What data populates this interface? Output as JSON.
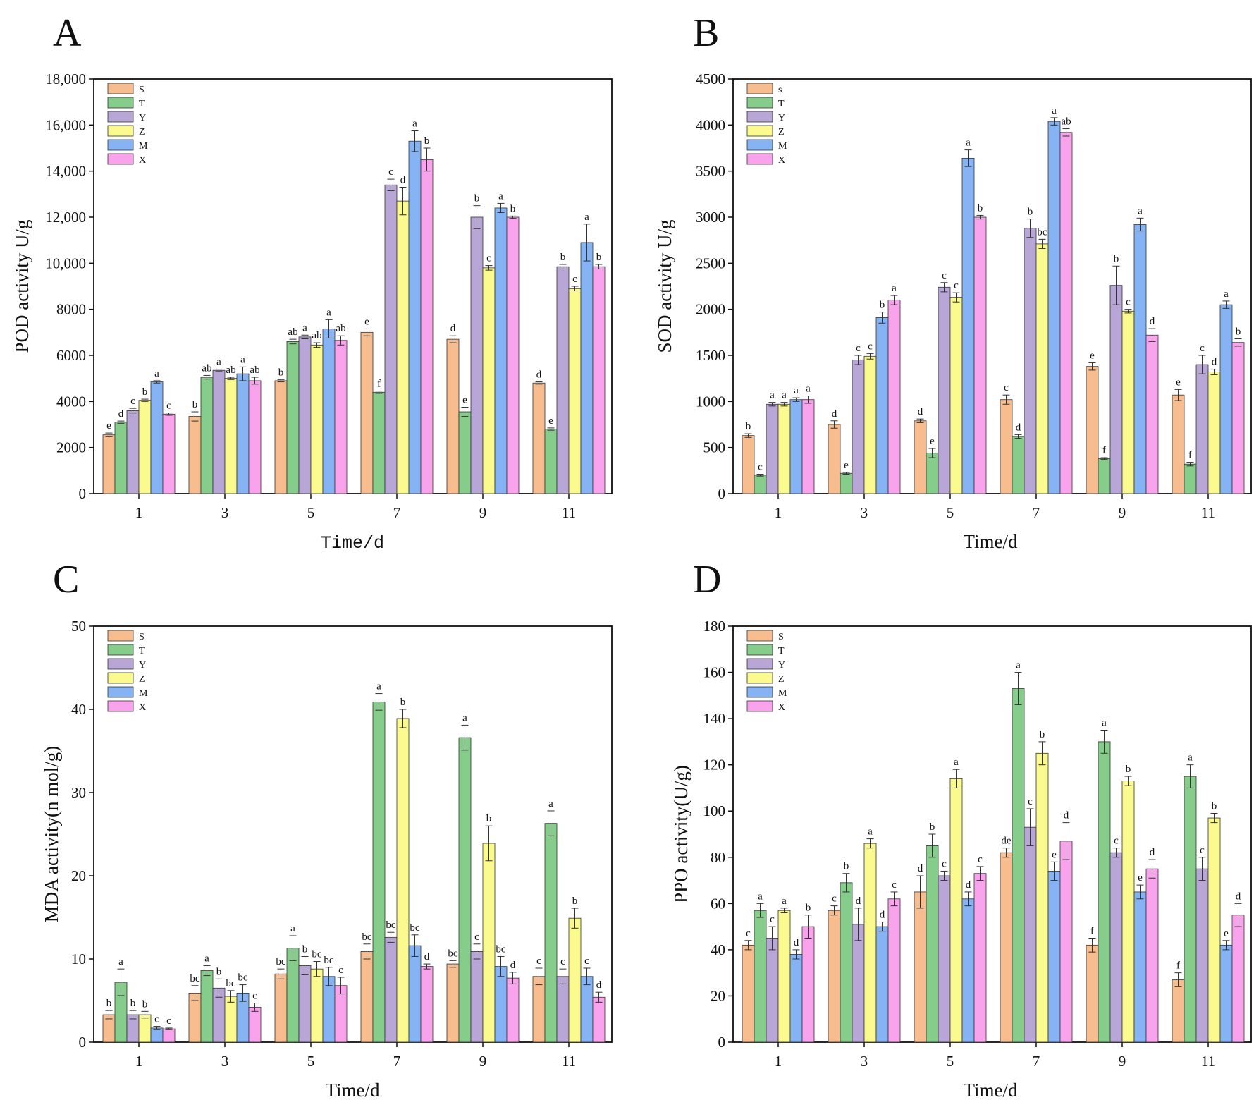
{
  "colors": {
    "S": "#f8bd8f",
    "T": "#86cc8a",
    "Y": "#b8a6d6",
    "Z": "#fbfa8e",
    "M": "#86b3f4",
    "X": "#f9a3ec"
  },
  "chart_data": [
    {
      "panel": "A",
      "type": "bar",
      "ylabel": "POD activity U/g",
      "xlabel": "Time/d",
      "categories": [
        "1",
        "3",
        "5",
        "7",
        "9",
        "11"
      ],
      "ylim": [
        0,
        18000
      ],
      "yticks": [
        0,
        2000,
        4000,
        6000,
        8000,
        10000,
        12000,
        14000,
        16000,
        18000
      ],
      "yticklabels": [
        "0",
        "2000",
        "4000",
        "6000",
        "8000",
        "10,000",
        "12,000",
        "14,000",
        "16,000",
        "18,000"
      ],
      "legend": [
        "S",
        "T",
        "Y",
        "Z",
        "M",
        "X"
      ],
      "series": [
        {
          "name": "S",
          "values": [
            2550,
            3350,
            4900,
            7000,
            6700,
            4800
          ],
          "errors": [
            80,
            200,
            50,
            150,
            150,
            50
          ],
          "labels": [
            "e",
            "b",
            "b",
            "e",
            "d",
            "d"
          ]
        },
        {
          "name": "T",
          "values": [
            3100,
            5050,
            6600,
            4400,
            3550,
            2800
          ],
          "errors": [
            50,
            80,
            100,
            50,
            200,
            50
          ],
          "labels": [
            "d",
            "ab",
            "ab",
            "f",
            "e",
            "e"
          ]
        },
        {
          "name": "Y",
          "values": [
            3600,
            5350,
            6800,
            13400,
            12000,
            9850
          ],
          "errors": [
            100,
            50,
            80,
            250,
            500,
            100
          ],
          "labels": [
            "c",
            "a",
            "a",
            "c",
            "b",
            "b"
          ]
        },
        {
          "name": "Z",
          "values": [
            4050,
            5000,
            6450,
            12700,
            9800,
            8900
          ],
          "errors": [
            50,
            50,
            100,
            600,
            100,
            100
          ],
          "labels": [
            "b",
            "ab",
            "ab",
            "d",
            "c",
            "c"
          ]
        },
        {
          "name": "M",
          "values": [
            4850,
            5200,
            7150,
            15300,
            12400,
            10900
          ],
          "errors": [
            50,
            300,
            400,
            450,
            200,
            800
          ],
          "labels": [
            "a",
            "a",
            "a",
            "a",
            "a",
            "a"
          ]
        },
        {
          "name": "X",
          "values": [
            3450,
            4900,
            6650,
            14500,
            12000,
            9850
          ],
          "errors": [
            50,
            150,
            200,
            500,
            50,
            100
          ],
          "labels": [
            "c",
            "ab",
            "ab",
            "b",
            "b",
            "b"
          ]
        }
      ]
    },
    {
      "panel": "B",
      "type": "bar",
      "ylabel": "SOD activity U/g",
      "xlabel": "Time/d",
      "categories": [
        "1",
        "3",
        "5",
        "7",
        "9",
        "11"
      ],
      "ylim": [
        0,
        4500
      ],
      "yticks": [
        0,
        500,
        1000,
        1500,
        2000,
        2500,
        3000,
        3500,
        4000,
        4500
      ],
      "yticklabels": [
        "0",
        "500",
        "1000",
        "1500",
        "2000",
        "2500",
        "3000",
        "3500",
        "4000",
        "4500"
      ],
      "legend": [
        "s",
        "T",
        "Y",
        "Z",
        "M",
        "X"
      ],
      "series": [
        {
          "name": "S",
          "values": [
            630,
            750,
            790,
            1020,
            1380,
            1070
          ],
          "errors": [
            20,
            40,
            20,
            50,
            40,
            60
          ],
          "labels": [
            "b",
            "d",
            "d",
            "c",
            "e",
            "e"
          ]
        },
        {
          "name": "T",
          "values": [
            200,
            220,
            440,
            620,
            380,
            320
          ],
          "errors": [
            10,
            10,
            50,
            20,
            10,
            20
          ],
          "labels": [
            "c",
            "e",
            "e",
            "d",
            "f",
            "f"
          ]
        },
        {
          "name": "Y",
          "values": [
            970,
            1450,
            2240,
            2880,
            2260,
            1400
          ],
          "errors": [
            20,
            50,
            50,
            100,
            210,
            100
          ],
          "labels": [
            "a",
            "c",
            "c",
            "b",
            "b",
            "c"
          ]
        },
        {
          "name": "Z",
          "values": [
            970,
            1490,
            2130,
            2710,
            1980,
            1320
          ],
          "errors": [
            20,
            30,
            50,
            50,
            20,
            30
          ],
          "labels": [
            "a",
            "c",
            "c",
            "bc",
            "c",
            "d"
          ]
        },
        {
          "name": "M",
          "values": [
            1020,
            1910,
            3640,
            4040,
            2920,
            2050
          ],
          "errors": [
            20,
            60,
            90,
            40,
            70,
            40
          ],
          "labels": [
            "a",
            "b",
            "a",
            "a",
            "a",
            "a"
          ]
        },
        {
          "name": "X",
          "values": [
            1020,
            2100,
            3000,
            3920,
            1720,
            1640
          ],
          "errors": [
            40,
            50,
            20,
            40,
            70,
            40
          ],
          "labels": [
            "a",
            "a",
            "b",
            "ab",
            "d",
            "b"
          ]
        }
      ]
    },
    {
      "panel": "C",
      "type": "bar",
      "ylabel": "MDA activity(n mol/g)",
      "xlabel": "Time/d",
      "categories": [
        "1",
        "3",
        "5",
        "7",
        "9",
        "11"
      ],
      "ylim": [
        0,
        50
      ],
      "yticks": [
        0,
        10,
        20,
        30,
        40,
        50
      ],
      "yticklabels": [
        "0",
        "10",
        "20",
        "30",
        "40",
        "50"
      ],
      "legend": [
        "S",
        "T",
        "Y",
        "Z",
        "M",
        "X"
      ],
      "series": [
        {
          "name": "S",
          "values": [
            3.3,
            5.9,
            8.2,
            10.9,
            9.4,
            7.9
          ],
          "errors": [
            0.5,
            0.9,
            0.6,
            0.9,
            0.4,
            1.0
          ],
          "labels": [
            "b",
            "bc",
            "bc",
            "bc",
            "bc",
            "c"
          ]
        },
        {
          "name": "T",
          "values": [
            7.2,
            8.6,
            11.3,
            40.9,
            36.6,
            26.3
          ],
          "errors": [
            1.6,
            0.6,
            1.5,
            1.0,
            1.5,
            1.5
          ],
          "labels": [
            "a",
            "a",
            "a",
            "a",
            "a",
            "a"
          ]
        },
        {
          "name": "Y",
          "values": [
            3.3,
            6.5,
            9.2,
            12.6,
            10.9,
            7.9
          ],
          "errors": [
            0.5,
            1.1,
            1.1,
            0.6,
            0.9,
            0.9
          ],
          "labels": [
            "b",
            "b",
            "b",
            "bc",
            "c",
            "c"
          ]
        },
        {
          "name": "Z",
          "values": [
            3.3,
            5.5,
            8.8,
            38.9,
            23.9,
            14.9
          ],
          "errors": [
            0.4,
            0.7,
            0.9,
            1.1,
            2.1,
            1.2
          ],
          "labels": [
            "b",
            "bc",
            "bc",
            "b",
            "b",
            "b"
          ]
        },
        {
          "name": "M",
          "values": [
            1.7,
            5.9,
            7.9,
            11.6,
            9.1,
            7.9
          ],
          "errors": [
            0.2,
            1.0,
            1.1,
            1.3,
            1.2,
            1.0
          ],
          "labels": [
            "c",
            "bc",
            "bc",
            "bc",
            "bc",
            "c"
          ]
        },
        {
          "name": "X",
          "values": [
            1.6,
            4.2,
            6.8,
            9.1,
            7.7,
            5.4
          ],
          "errors": [
            0.1,
            0.5,
            1.0,
            0.3,
            0.7,
            0.6
          ],
          "labels": [
            "c",
            "c",
            "c",
            "d",
            "d",
            "d"
          ]
        }
      ]
    },
    {
      "panel": "D",
      "type": "bar",
      "ylabel": "PPO activity(U/g)",
      "xlabel": "Time/d",
      "categories": [
        "1",
        "3",
        "5",
        "7",
        "9",
        "11"
      ],
      "ylim": [
        0,
        180
      ],
      "yticks": [
        0,
        20,
        40,
        60,
        80,
        100,
        120,
        140,
        160,
        180
      ],
      "yticklabels": [
        "0",
        "20",
        "40",
        "60",
        "80",
        "100",
        "120",
        "140",
        "160",
        "180"
      ],
      "legend": [
        "S",
        "T",
        "Y",
        "Z",
        "M",
        "X"
      ],
      "series": [
        {
          "name": "S",
          "values": [
            42,
            57,
            65,
            82,
            42,
            27
          ],
          "errors": [
            2,
            2,
            7,
            2,
            3,
            3
          ],
          "labels": [
            "c",
            "c",
            "d",
            "de",
            "f",
            "f"
          ]
        },
        {
          "name": "T",
          "values": [
            57,
            69,
            85,
            153,
            130,
            115
          ],
          "errors": [
            3,
            4,
            5,
            7,
            5,
            5
          ],
          "labels": [
            "a",
            "b",
            "b",
            "a",
            "a",
            "a"
          ]
        },
        {
          "name": "Y",
          "values": [
            45,
            51,
            72,
            93,
            82,
            75
          ],
          "errors": [
            5,
            7,
            2,
            8,
            2,
            5
          ],
          "labels": [
            "c",
            "d",
            "c",
            "c",
            "c",
            "c"
          ]
        },
        {
          "name": "Z",
          "values": [
            57,
            86,
            114,
            125,
            113,
            97
          ],
          "errors": [
            1,
            2,
            4,
            5,
            2,
            2
          ],
          "labels": [
            "a",
            "a",
            "a",
            "b",
            "b",
            "b"
          ]
        },
        {
          "name": "M",
          "values": [
            38,
            50,
            62,
            74,
            65,
            42
          ],
          "errors": [
            2,
            2,
            3,
            4,
            3,
            2
          ],
          "labels": [
            "d",
            "d",
            "d",
            "e",
            "e",
            "e"
          ]
        },
        {
          "name": "X",
          "values": [
            50,
            62,
            73,
            87,
            75,
            55
          ],
          "errors": [
            5,
            3,
            3,
            8,
            4,
            5
          ],
          "labels": [
            "b",
            "c",
            "c",
            "d",
            "d",
            "d"
          ]
        }
      ]
    }
  ]
}
